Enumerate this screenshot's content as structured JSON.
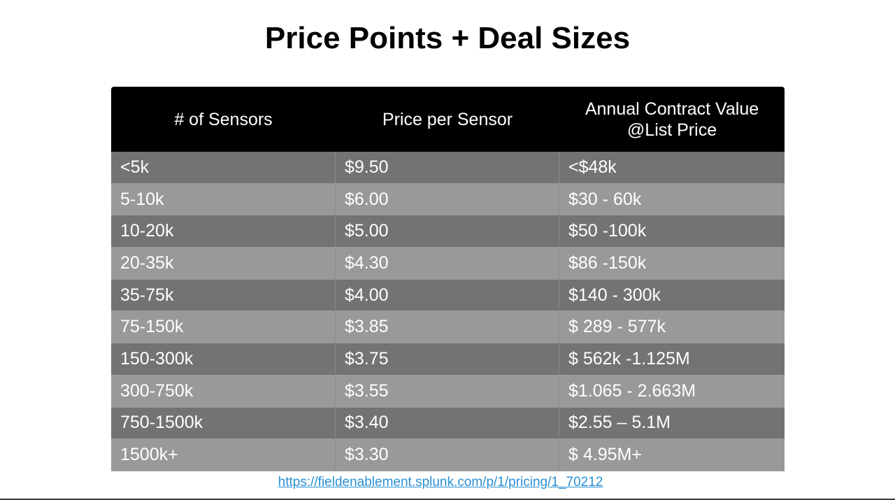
{
  "slide": {
    "title": "Price Points + Deal Sizes",
    "source_url": "https://fieldenablement.splunk.com/p/1/pricing/1_70212"
  },
  "table": {
    "headers": {
      "sensors": "# of Sensors",
      "price": "Price per Sensor",
      "acv": "Annual Contract Value\n@List Price"
    },
    "rows": [
      {
        "sensors": "<5k",
        "price": "$9.50",
        "acv": "<$48k"
      },
      {
        "sensors": "5-10k",
        "price": "$6.00",
        "acv": "$30 - 60k"
      },
      {
        "sensors": "10-20k",
        "price": "$5.00",
        "acv": "$50 -100k"
      },
      {
        "sensors": "20-35k",
        "price": "$4.30",
        "acv": "$86 -150k"
      },
      {
        "sensors": "35-75k",
        "price": "$4.00",
        "acv": "$140 - 300k"
      },
      {
        "sensors": "75-150k",
        "price": "$3.85",
        "acv": "$ 289 - 577k"
      },
      {
        "sensors": "150-300k",
        "price": "$3.75",
        "acv": "$ 562k -1.125M"
      },
      {
        "sensors": "300-750k",
        "price": "$3.55",
        "acv": "$1.065 - 2.663M"
      },
      {
        "sensors": "750-1500k",
        "price": "$3.40",
        "acv": "$2.55 – 5.1M"
      },
      {
        "sensors": "1500k+",
        "price": "$3.30",
        "acv": "$ 4.95M+"
      }
    ]
  },
  "colors": {
    "header_bg": "#000000",
    "row_dark": "#737373",
    "row_light": "#999999",
    "link": "#2a8fd4"
  }
}
